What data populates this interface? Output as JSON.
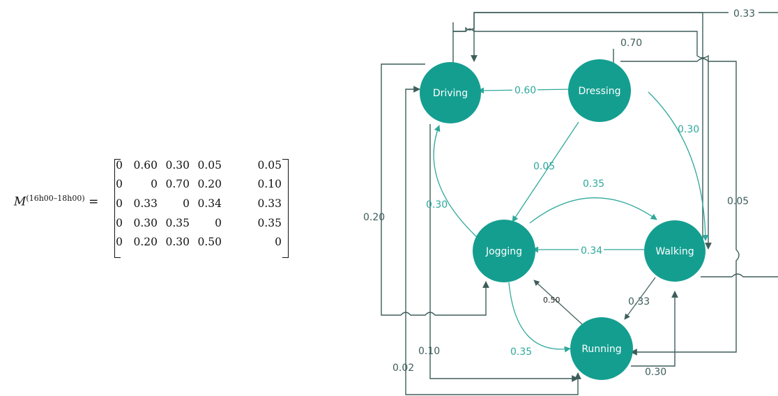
{
  "matrix": {
    "symbol": "M",
    "superscript": "(16h00–18h00)",
    "equals": "=",
    "rows": [
      [
        "0",
        "0.60",
        "0.30",
        "0.05",
        "0.05"
      ],
      [
        "0",
        "0",
        "0.70",
        "0.20",
        "0.10"
      ],
      [
        "0",
        "0.33",
        "0",
        "0.34",
        "0.33"
      ],
      [
        "0",
        "0.30",
        "0.35",
        "0",
        "0.35"
      ],
      [
        "0",
        "0.20",
        "0.30",
        "0.50",
        "0"
      ]
    ]
  },
  "states": {
    "driving": "Driving",
    "dressing": "Dressing",
    "jogging": "Jogging",
    "walking": "Walking",
    "running": "Running"
  },
  "edges": {
    "dressing_driving": "0.60",
    "dressing_walking": "0.30",
    "dressing_jogging": "0.05",
    "jogging_walking": "0.35",
    "walking_jogging": "0.34",
    "jogging_driving": "0.30",
    "jogging_running": "0.35",
    "running_jogging": "0.50",
    "walking_running": "0.33",
    "running_walking": "0.30",
    "top_loop": "0.33",
    "dressing_top": "0.70",
    "right_loop": "0.05",
    "left_outer": "0.20",
    "left_inner": "0.10",
    "bottom_loop": "0.02"
  },
  "colors": {
    "teal": "#149e90",
    "teal_line": "#2fa89b",
    "dark_line": "#3d5d5a"
  }
}
